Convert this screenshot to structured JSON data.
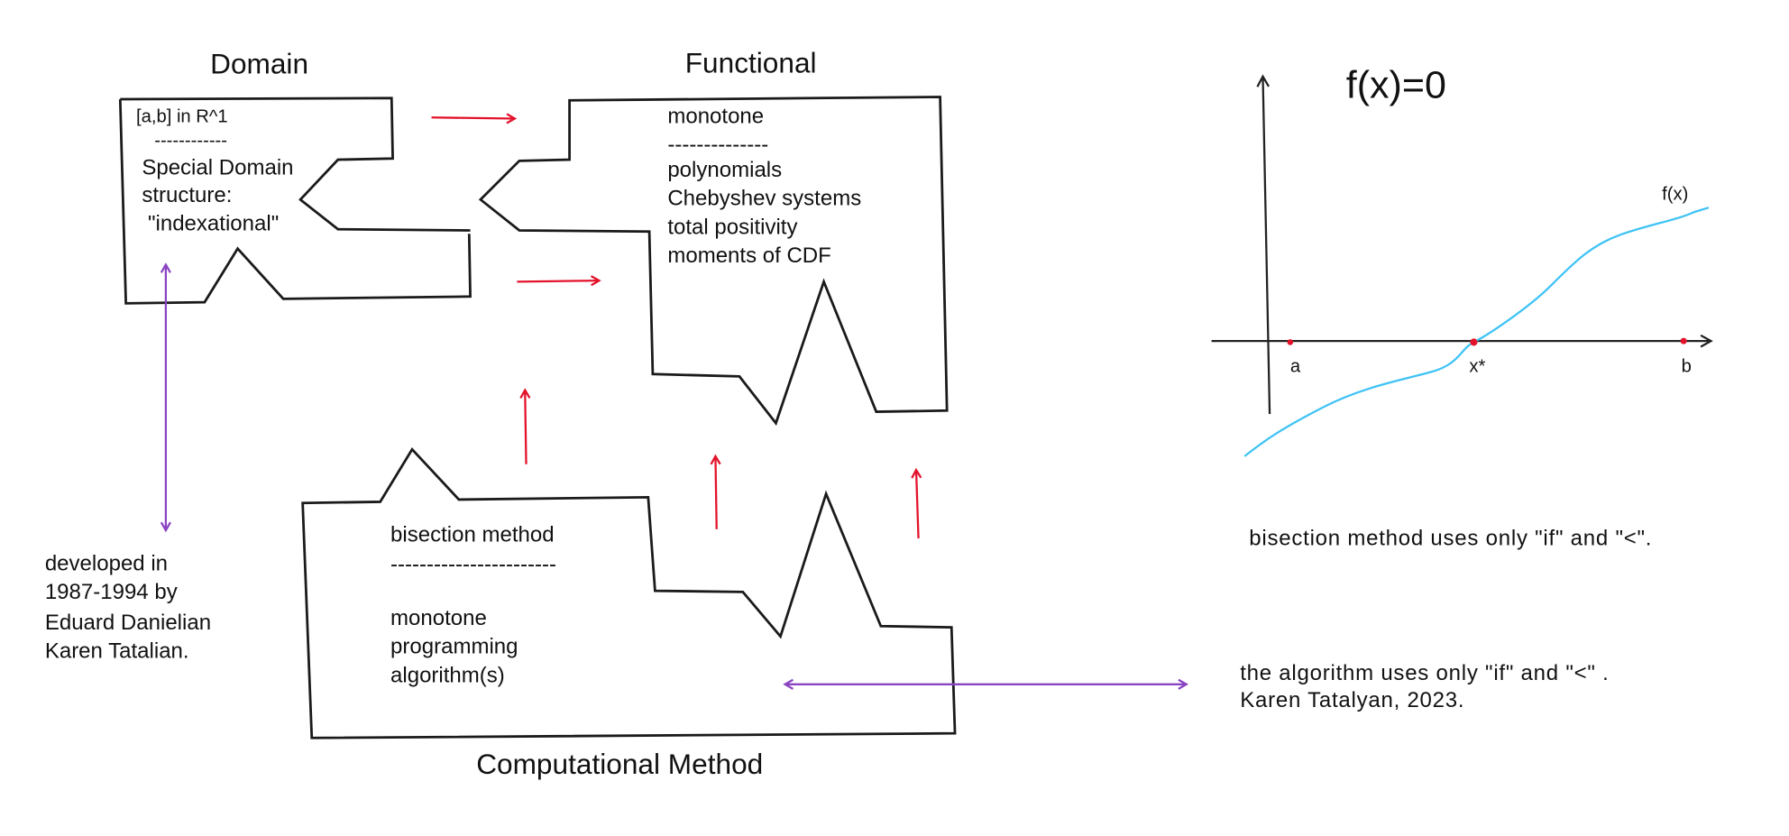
{
  "titles": {
    "domain": "Domain",
    "functional": "Functional",
    "computational": "Computational Method"
  },
  "domain_box": {
    "lines": [
      "[a,b] in R^1",
      "------------",
      "Special Domain",
      "structure:",
      " \"indexational\""
    ]
  },
  "functional_box": {
    "lines": [
      "monotone",
      "--------------",
      "polynomials",
      "Chebyshev systems",
      "total positivity",
      "moments of CDF"
    ]
  },
  "computational_box": {
    "lines": [
      "bisection method",
      "-----------------------",
      "monotone",
      "programming",
      "algorithm(s)"
    ]
  },
  "history_note": {
    "lines": [
      "developed in",
      "1987-1994 by",
      "Eduard Danielian",
      "Karen Tatalian."
    ]
  },
  "graph": {
    "title": "f(x)=0",
    "curve_label": "f(x)",
    "points": [
      "a",
      "x*",
      "b"
    ],
    "curve_color": "#3fc3f5",
    "point_color": "#e3122b"
  },
  "notes": {
    "bisection": "bisection method uses only \"if\" and \"<\".",
    "algorithm": [
      "the algorithm uses only \"if\" and \"<\" .",
      "Karen Tatalyan, 2023."
    ]
  },
  "colors": {
    "arrow_red": "#e3122b",
    "arrow_purple": "#8a44c2"
  }
}
